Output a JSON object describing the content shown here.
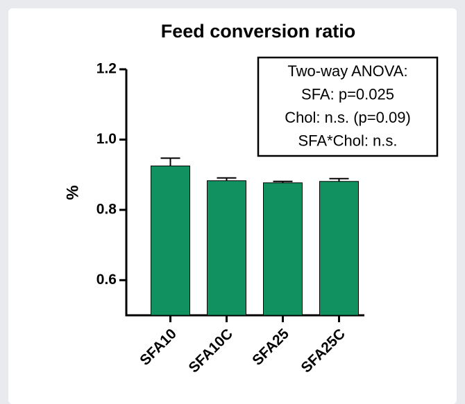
{
  "chart_data": {
    "type": "bar",
    "title": "Feed conversion ratio",
    "y_label": "%",
    "categories": [
      "SFA10",
      "SFA10C",
      "SFA25",
      "SFA25C"
    ],
    "values": [
      0.925,
      0.883,
      0.877,
      0.881
    ],
    "errors": [
      0.022,
      0.008,
      0.004,
      0.008
    ],
    "color": "#11915f",
    "ylim": [
      0.5,
      1.2
    ],
    "yticks": [
      0.6,
      0.8,
      {
        "value": 1,
        "label": "1.0"
      },
      1.2
    ],
    "annotation": [
      "Two-way ANOVA:",
      "SFA: p=0.025",
      "Chol: n.s. (p=0.09)",
      "SFA*Chol: n.s."
    ]
  }
}
